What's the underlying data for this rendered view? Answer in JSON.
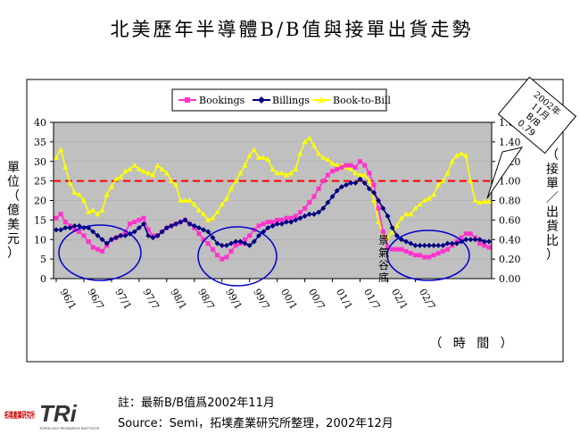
{
  "title": "北美歷年半導體B/B值與接單出貨走勢",
  "left_axis_label": "單位（億美元）",
  "right_axis_label": "（接單／出貨比）",
  "x_axis_label": "（ 時 間 ）",
  "callout": [
    "2002年",
    "11月",
    "B/B",
    "0.79"
  ],
  "annotation": [
    "景",
    "氣",
    "谷",
    "底"
  ],
  "note": "註：最新B/B值爲2002年11月",
  "source": "Source：Semi，拓墣產業研究所整理，2002年12月",
  "logo": {
    "chinese": "拓墣產業研究所",
    "mark": "TRi",
    "subtitle": "TOPOLOGY RESEARCH INSTITUTE"
  },
  "colors": {
    "bookings": "#ff33cc",
    "billings": "#000080",
    "bb": "#ffff00",
    "plot_bg": "#c0c0c0",
    "threshold": "#ff0000",
    "circle": "#0000cc"
  },
  "chart_data": {
    "type": "line",
    "title": "北美歷年半導體B/B值與接單出貨走勢",
    "x_label": "（時間）",
    "y_label_left": "單位（億美元）",
    "y_label_right": "接單／出貨比",
    "x_tick_labels": [
      "96/1",
      "96/7",
      "97/1",
      "97/7",
      "98/1",
      "98/7",
      "99/1",
      "99/7",
      "00/1",
      "00/7",
      "01/1",
      "01/7",
      "02/1",
      "02/7"
    ],
    "x_start": "1996-01",
    "y_left": {
      "min": 0,
      "max": 40,
      "ticks": [
        0,
        5,
        10,
        15,
        20,
        25,
        30,
        35,
        40
      ]
    },
    "y_right": {
      "min": 0,
      "max": 1.6,
      "ticks": [
        "0.00",
        "0.20",
        "0.40",
        "0.60",
        "0.80",
        "1.00",
        "1.20",
        "1.40",
        "1.60"
      ]
    },
    "threshold": 1.0,
    "legend_position": "top",
    "series": [
      {
        "name": "Bookings",
        "axis": "left",
        "marker": "square",
        "values": [
          15.5,
          16.5,
          14.5,
          13.5,
          12.5,
          12,
          11,
          9.5,
          8,
          7.5,
          7,
          8.5,
          10,
          10.5,
          11,
          12,
          14,
          14.5,
          15,
          15.5,
          12.5,
          11,
          11,
          12,
          13,
          13.5,
          14,
          14.5,
          15,
          14,
          13,
          11.5,
          10,
          9,
          7.5,
          6,
          5,
          5.5,
          7,
          8.5,
          9,
          10,
          11,
          12.5,
          13.5,
          14,
          14.5,
          14.5,
          15,
          15,
          15.5,
          15.5,
          16,
          17,
          18,
          19.5,
          21,
          23,
          25,
          26.5,
          27.5,
          28,
          28.5,
          29,
          29,
          28.5,
          30,
          29,
          27,
          24,
          18,
          12,
          8,
          7.5,
          7.5,
          7.5,
          7,
          6.5,
          6,
          6,
          5.5,
          5.5,
          6,
          6.5,
          7,
          7.5,
          8.5,
          9.5,
          10.5,
          11.5,
          11.5,
          10.5,
          9,
          8.5,
          8
        ]
      },
      {
        "name": "Billings",
        "axis": "left",
        "marker": "diamond",
        "values": [
          12.5,
          12.5,
          13,
          13,
          13.5,
          13.5,
          13,
          13,
          12,
          11,
          10,
          9,
          10,
          10.5,
          11,
          11,
          11.5,
          12,
          13,
          14,
          11,
          10.5,
          11,
          12,
          13,
          13.5,
          14,
          14.5,
          15,
          14,
          13.5,
          13,
          12.5,
          12,
          10.5,
          9,
          8.5,
          8.5,
          9,
          9.5,
          9.5,
          9,
          8.5,
          9.5,
          11,
          12,
          13,
          13.5,
          14,
          14,
          14.5,
          14.5,
          15,
          15.5,
          16,
          16.5,
          16.5,
          17,
          18,
          19.5,
          21,
          22.5,
          23.5,
          24,
          24.5,
          24.5,
          25.5,
          24.5,
          23,
          22,
          20,
          18,
          16,
          13,
          11,
          10,
          9.5,
          9,
          8.5,
          8.5,
          8.5,
          8.5,
          8.5,
          8.5,
          8.5,
          9,
          9,
          9,
          9.5,
          10,
          10,
          10,
          10,
          9.5,
          9.5
        ]
      },
      {
        "name": "Book-to-Bill",
        "axis": "right",
        "marker": "triangle",
        "values": [
          1.24,
          1.32,
          1.14,
          0.98,
          0.88,
          0.86,
          0.8,
          0.68,
          0.7,
          0.66,
          0.7,
          0.86,
          0.94,
          1.02,
          1.04,
          1.1,
          1.12,
          1.16,
          1.12,
          1.1,
          1.08,
          1.06,
          1.16,
          1.12,
          1.08,
          1.0,
          0.96,
          0.8,
          0.8,
          0.8,
          0.76,
          0.7,
          0.66,
          0.6,
          0.62,
          0.68,
          0.76,
          0.82,
          0.92,
          1.0,
          1.08,
          1.16,
          1.26,
          1.32,
          1.24,
          1.24,
          1.22,
          1.12,
          1.08,
          1.08,
          1.06,
          1.08,
          1.12,
          1.28,
          1.4,
          1.44,
          1.36,
          1.28,
          1.24,
          1.22,
          1.18,
          1.16,
          1.16,
          1.14,
          1.12,
          1.08,
          1.06,
          1.06,
          1.0,
          0.8,
          0.58,
          0.46,
          0.42,
          0.48,
          0.54,
          0.62,
          0.66,
          0.66,
          0.72,
          0.76,
          0.8,
          0.82,
          0.86,
          0.96,
          1.0,
          1.08,
          1.2,
          1.26,
          1.28,
          1.26,
          1.0,
          0.8,
          0.78,
          0.79,
          0.79
        ]
      }
    ]
  }
}
